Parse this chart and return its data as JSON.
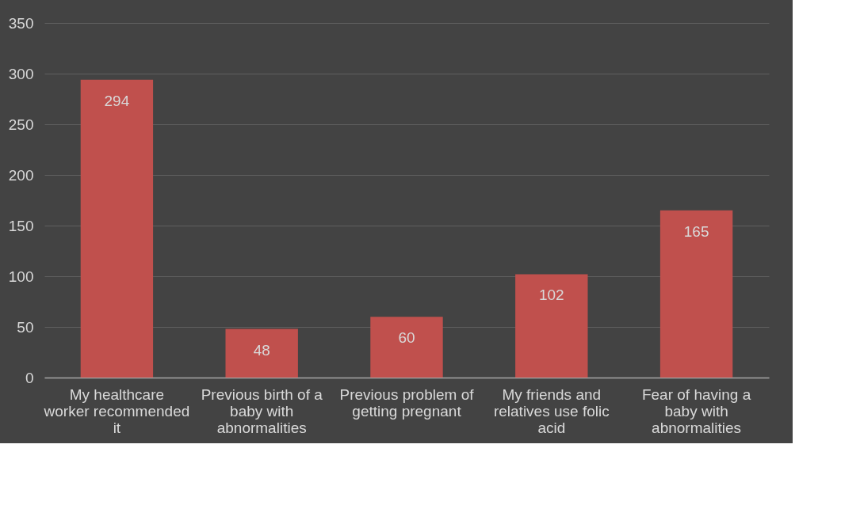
{
  "chart_data": {
    "type": "bar",
    "categories": [
      "My healthcare worker recommended it",
      "Previous birth of a baby with abnormalities",
      "Previous problem of getting pregnant",
      "My friends and relatives use folic acid",
      "Fear of having a baby with abnormalities"
    ],
    "values": [
      294,
      48,
      60,
      102,
      165
    ],
    "color": "#c0504d",
    "ylim": [
      0,
      350
    ],
    "yticks": [
      0,
      50,
      100,
      150,
      200,
      250,
      300,
      350
    ],
    "grid": "y",
    "data_labels": true
  }
}
